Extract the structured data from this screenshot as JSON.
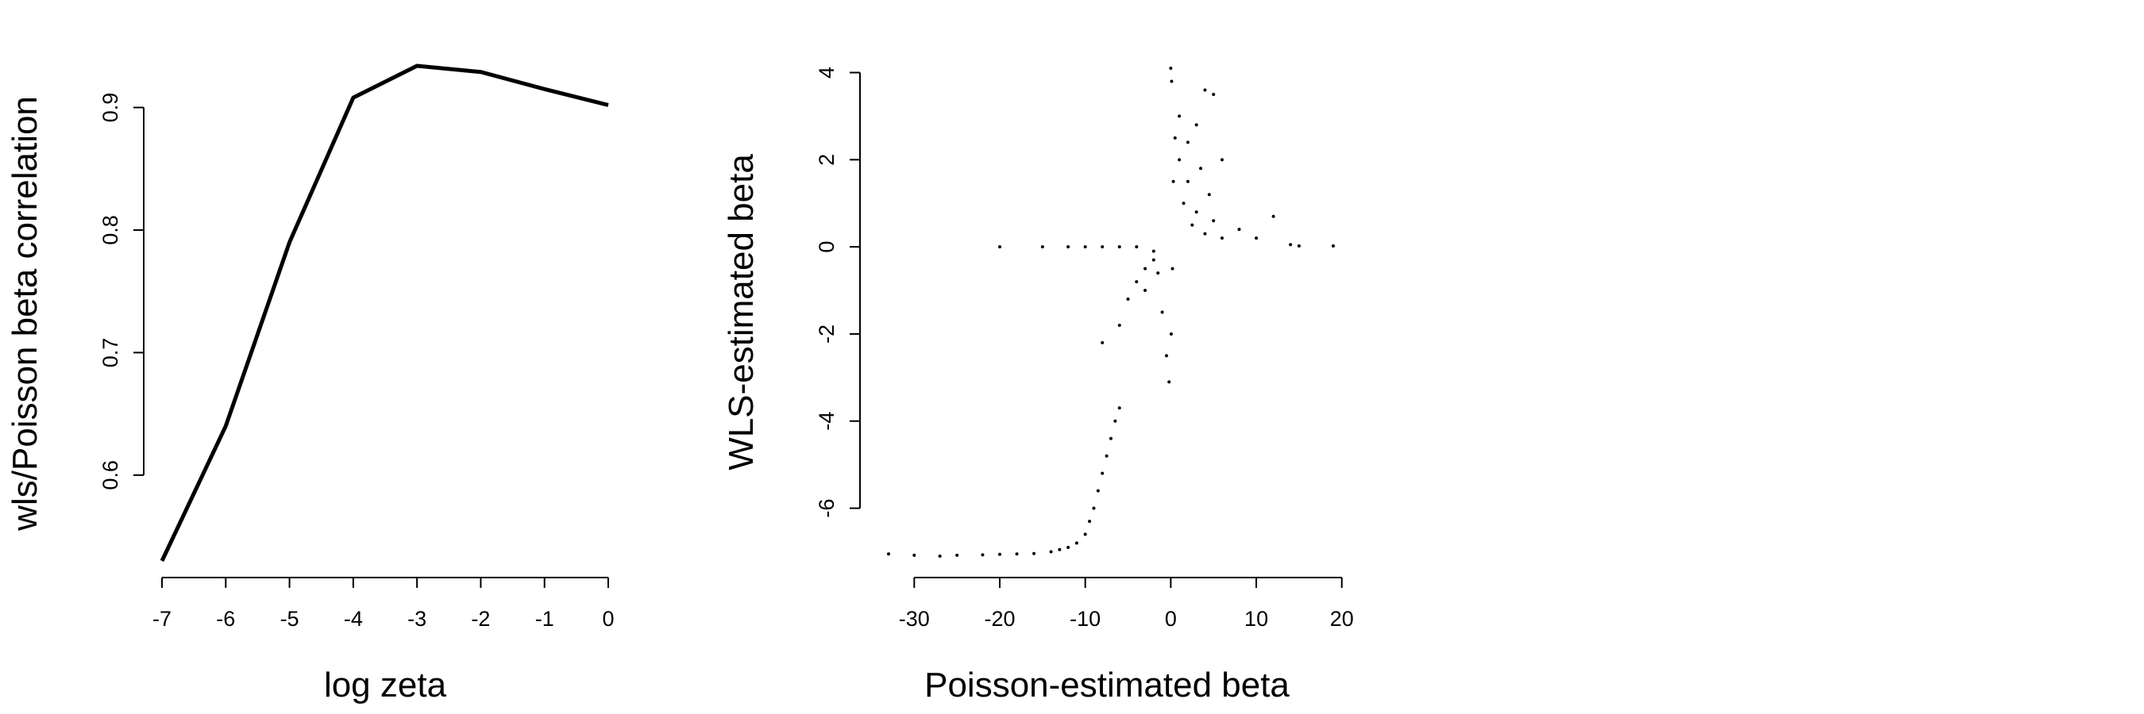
{
  "chart_data": [
    {
      "type": "line",
      "xlabel": "log zeta",
      "ylabel": "wls/Poisson beta correlation",
      "x": [
        -7,
        -6,
        -5,
        -4,
        -3,
        -2,
        -1,
        0
      ],
      "values": [
        0.53,
        0.64,
        0.79,
        0.908,
        0.934,
        0.929,
        0.915,
        0.902
      ],
      "color": "#000000",
      "xlim": [
        -7,
        0
      ],
      "ylim": [
        0.53,
        0.934
      ],
      "xticks": [
        -7,
        -6,
        -5,
        -4,
        -3,
        -2,
        -1,
        0
      ],
      "yticks": [
        0.6,
        0.7,
        0.8,
        0.9
      ]
    },
    {
      "type": "scatter",
      "xlabel": "Poisson-estimated beta",
      "ylabel": "WLS-estimated beta",
      "x": [
        -33,
        -30,
        -27,
        -25,
        -22,
        -20,
        -18,
        -16,
        -14,
        -13,
        -12,
        -11,
        -10,
        -9.5,
        -9,
        -8.5,
        -8,
        -7.5,
        -7,
        -6.5,
        -6,
        -8,
        -6,
        -5,
        -4,
        -3,
        -2,
        -1,
        -0.5,
        -0.2,
        -1.5,
        -3,
        -20,
        -15,
        -12,
        -10,
        -8,
        -6,
        -4,
        -2,
        0.1,
        0,
        0.5,
        1,
        2,
        3,
        4,
        5,
        6,
        1.5,
        2.5,
        3,
        4,
        5,
        6,
        8,
        10,
        12,
        14,
        15,
        19,
        0.2,
        0.3,
        1,
        2,
        3.5,
        4.5,
        0.05
      ],
      "values": [
        -7.05,
        -7.08,
        -7.1,
        -7.08,
        -7.07,
        -7.06,
        -7.05,
        -7.04,
        -7,
        -6.95,
        -6.9,
        -6.8,
        -6.6,
        -6.3,
        -6,
        -5.6,
        -5.2,
        -4.8,
        -4.4,
        -4,
        -3.7,
        -2.2,
        -1.8,
        -1.2,
        -0.8,
        -0.5,
        -0.3,
        -1.5,
        -2.5,
        -3.1,
        -0.6,
        -1,
        0,
        0,
        0,
        0,
        0,
        0,
        0,
        -0.1,
        3.8,
        4.1,
        2.5,
        2,
        1.5,
        2.8,
        3.6,
        3.5,
        2,
        1,
        0.5,
        0.8,
        0.3,
        0.6,
        0.2,
        0.4,
        0.2,
        0.7,
        0.05,
        0.02,
        0.02,
        -0.5,
        1.5,
        3,
        2.4,
        1.8,
        1.2,
        -2
      ],
      "color": "#000000",
      "xlim": [
        -33,
        19
      ],
      "ylim": [
        -7.1,
        4.1
      ],
      "xticks": [
        -30,
        -20,
        -10,
        0,
        10,
        20
      ],
      "yticks": [
        -6,
        -4,
        -2,
        0,
        2,
        4
      ]
    }
  ]
}
